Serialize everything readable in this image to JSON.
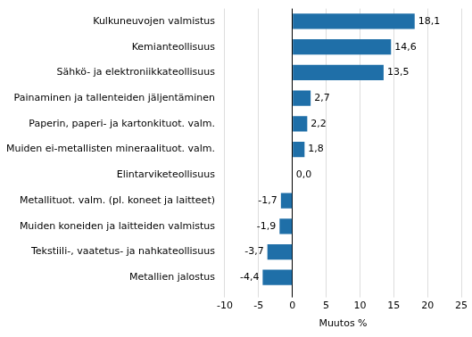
{
  "chart_data": {
    "type": "bar",
    "orientation": "horizontal",
    "categories": [
      "Kulkuneuvojen valmistus",
      "Kemianteollisuus",
      "Sähkö- ja elektroniikkateollisuus",
      "Painaminen ja tallenteiden jäljentäminen",
      "Paperin, paperi- ja kartonkituot. valm.",
      "Muiden ei-metallisten mineraalituot. valm.",
      "Elintarviketeollisuus",
      "Metallituot. valm. (pl. koneet ja laitteet)",
      "Muiden koneiden ja laitteiden valmistus",
      "Tekstiili-, vaatetus- ja nahkateollisuus",
      "Metallien jalostus"
    ],
    "values": [
      18.1,
      14.6,
      13.5,
      2.7,
      2.2,
      1.8,
      0.0,
      -1.7,
      -1.9,
      -3.7,
      -4.4
    ],
    "value_labels": [
      "18,1",
      "14,6",
      "13,5",
      "2,7",
      "2,2",
      "1,8",
      "0,0",
      "-1,7",
      "-1,9",
      "-3,7",
      "-4,4"
    ],
    "color": "#1f6fa8",
    "xlabel": "Muutos %",
    "xlim": [
      -10,
      25
    ],
    "xticks": [
      -10,
      -5,
      0,
      5,
      10,
      15,
      20,
      25
    ],
    "grid": true,
    "data_labels": true
  }
}
